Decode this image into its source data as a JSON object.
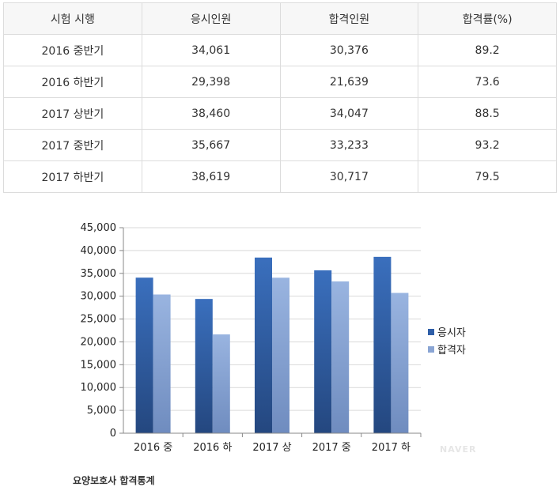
{
  "table": {
    "headers": [
      "시험 시행",
      "응시인원",
      "합격인원",
      "합격률(%)"
    ],
    "rows": [
      [
        "2016 중반기",
        "34,061",
        "30,376",
        "89.2"
      ],
      [
        "2016 하반기",
        "29,398",
        "21,639",
        "73.6"
      ],
      [
        "2017 상반기",
        "38,460",
        "34,047",
        "88.5"
      ],
      [
        "2017 중반기",
        "35,667",
        "33,233",
        "93.2"
      ],
      [
        "2017 하반기",
        "38,619",
        "30,717",
        "79.5"
      ]
    ]
  },
  "chart_data": {
    "type": "bar",
    "categories": [
      "2016 중",
      "2016 하",
      "2017 상",
      "2017 중",
      "2017 하"
    ],
    "series": [
      {
        "name": "응시자",
        "values": [
          34061,
          29398,
          38460,
          35667,
          38619
        ],
        "color": "#2f5fa8"
      },
      {
        "name": "합격자",
        "values": [
          30376,
          21639,
          34047,
          33233,
          30717
        ],
        "color": "#8aa5d4"
      }
    ],
    "ylim": [
      0,
      45000
    ],
    "yticks": [
      0,
      5000,
      10000,
      15000,
      20000,
      25000,
      30000,
      35000,
      40000,
      45000
    ],
    "ytick_labels": [
      "0",
      "5,000",
      "10,000",
      "15,000",
      "20,000",
      "25,000",
      "30,000",
      "35,000",
      "40,000",
      "45,000"
    ],
    "grid": true,
    "legend_position": "right"
  },
  "caption": "요양보호사 합격통계",
  "watermark": "NAVER"
}
